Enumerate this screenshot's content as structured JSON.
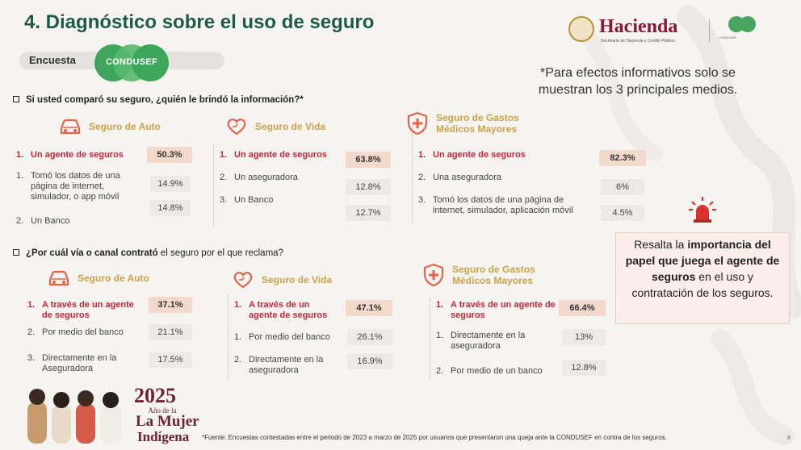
{
  "title": "4. Diagnóstico sobre el uso de seguro",
  "encuesta": {
    "label": "Encuesta",
    "logo_text": "CONDUSEF"
  },
  "header_logos": {
    "hacienda_name": "Hacienda",
    "hacienda_sub": "Secretaría de Hacienda y Crédito Público",
    "condusef_mini_text": "CONDUSEF"
  },
  "note": "*Para efectos informativos solo se muestran los 3 principales medios.",
  "q1": {
    "text": "Si usted comparó su seguro, ¿quién le brindó la información?*",
    "panels": [
      {
        "label": "Seguro de Auto",
        "icon": "car-icon",
        "rows": [
          {
            "num": "1.",
            "text": "Un agente de seguros",
            "pct": "50.3%"
          },
          {
            "num": "1.",
            "text": "Tomó los datos de una página de internet, simulador, o app móvil",
            "pct": "14.9%"
          },
          {
            "num": "2.",
            "text": "Un Banco",
            "pct": "14.8%"
          }
        ]
      },
      {
        "label": "Seguro de Vida",
        "icon": "heart-hand-icon",
        "rows": [
          {
            "num": "1.",
            "text": "Un agente de seguros",
            "pct": "63.8%"
          },
          {
            "num": "2.",
            "text": "Un aseguradora",
            "pct": "12.8%"
          },
          {
            "num": "3.",
            "text": "Un Banco",
            "pct": "12.7%"
          }
        ]
      },
      {
        "label": "Seguro de Gastos Médicos Mayores",
        "icon": "medical-shield-icon",
        "rows": [
          {
            "num": "1.",
            "text": "Un agente de seguros",
            "pct": "82.3%"
          },
          {
            "num": "2.",
            "text": "Una aseguradora",
            "pct": "6%"
          },
          {
            "num": "3.",
            "text": "Tomó los datos de una página de internet, simulador, aplicación móvil",
            "pct": "4.5%"
          }
        ]
      }
    ]
  },
  "q2": {
    "text_prefix": "¿Por cuál vía o canal contrató",
    "text_suffix": " el seguro por el que reclama?",
    "panels": [
      {
        "label": "Seguro de Auto",
        "icon": "car-icon",
        "rows": [
          {
            "num": "1.",
            "text": "A través de un agente de seguros",
            "pct": "37.1%"
          },
          {
            "num": "2.",
            "text": "Por medio del banco",
            "pct": "21.1%"
          },
          {
            "num": "3.",
            "text": "Directamente en la Aseguradora",
            "pct": "17.5%"
          }
        ]
      },
      {
        "label": "Seguro de Vida",
        "icon": "heart-hand-icon",
        "rows": [
          {
            "num": "1.",
            "text": "A través de un agente de seguros",
            "pct": "47.1%"
          },
          {
            "num": "1.",
            "text": "Por medio del banco",
            "pct": "26.1%"
          },
          {
            "num": "2.",
            "text": "Directamente en la aseguradora",
            "pct": "16.9%"
          }
        ]
      },
      {
        "label": "Seguro de Gastos Médicos Mayores",
        "icon": "medical-shield-icon",
        "rows": [
          {
            "num": "1.",
            "text": "A través de un agente de seguros",
            "pct": "66.4%"
          },
          {
            "num": "1.",
            "text": "Directamente en la aseguradora",
            "pct": "13%"
          },
          {
            "num": "2.",
            "text": "Por medio de un banco",
            "pct": "12.8%"
          }
        ]
      }
    ]
  },
  "callout": {
    "p1": "Resalta la ",
    "b1": "importancia del papel que juega el agente de seguros",
    "p2": " en el uso y contratación de los seguros."
  },
  "year_logo": {
    "year": "2025",
    "sub": "Año de la",
    "line1": "La Mujer",
    "line2": "Indígena"
  },
  "footnote": "*Fuente: Encuestas contestadas entre el periodo de 2023 a marzo de 2025 por usuarios que presentaron una queja ante la CONDUSEF en contra de los seguros.",
  "page_number": "8",
  "colors": {
    "title": "#1e5a4b",
    "gold": "#c9a24a",
    "accent_red": "#c0283a",
    "top_pct_bg": "#f3d8cc"
  }
}
